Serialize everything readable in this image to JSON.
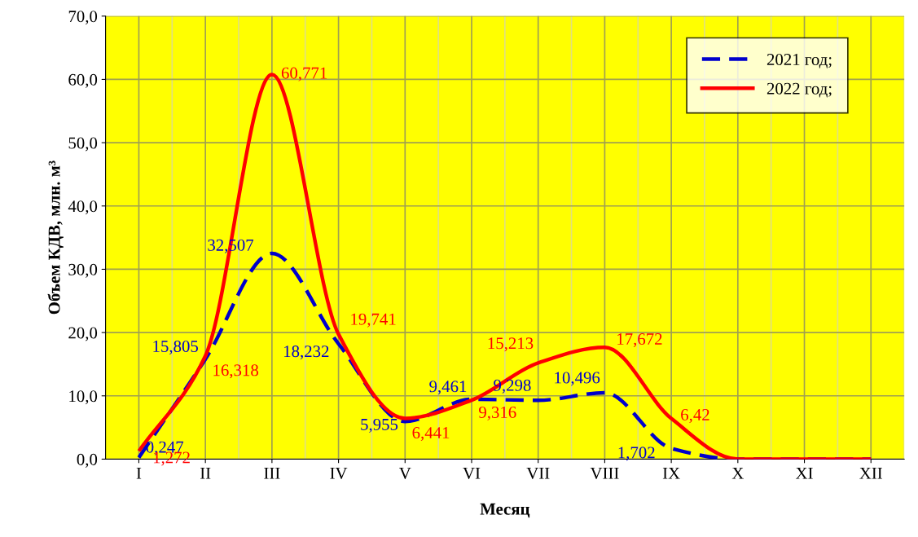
{
  "chart_data": {
    "type": "line",
    "xlabel": "Месяц",
    "ylabel": "Объем КДВ, млн. м³",
    "categories": [
      "I",
      "II",
      "III",
      "IV",
      "V",
      "VI",
      "VII",
      "VIII",
      "IX",
      "X",
      "XI",
      "XII"
    ],
    "series": [
      {
        "name": "2021 год;",
        "color": "#0000cc",
        "line_style": "dashed",
        "values": [
          0.247,
          15.805,
          32.507,
          18.232,
          5.955,
          9.461,
          9.298,
          10.496,
          1.702,
          0,
          0,
          0
        ],
        "value_labels": [
          "0,247",
          "15,805",
          "32,507",
          "18,232",
          "5,955",
          "9,461",
          "9,298",
          "10,496",
          "1,702",
          null,
          null,
          null
        ]
      },
      {
        "name": "2022 год;",
        "color": "#ff0000",
        "line_style": "solid",
        "values": [
          1.272,
          16.318,
          60.771,
          19.741,
          6.441,
          9.316,
          15.213,
          17.672,
          6.42,
          0,
          0,
          0
        ],
        "value_labels": [
          "1,272",
          "16,318",
          "60,771",
          "19,741",
          "6,441",
          "9,316",
          "15,213",
          "17,672",
          "6,42",
          null,
          null,
          null
        ]
      }
    ],
    "ylim": [
      0,
      70
    ],
    "yticks": [
      {
        "value": 0,
        "label": "0,0"
      },
      {
        "value": 10,
        "label": "10,0"
      },
      {
        "value": 20,
        "label": "20,0"
      },
      {
        "value": 30,
        "label": "30,0"
      },
      {
        "value": 40,
        "label": "40,0"
      },
      {
        "value": 50,
        "label": "50,0"
      },
      {
        "value": 60,
        "label": "60,0"
      },
      {
        "value": 70,
        "label": "70,0"
      }
    ],
    "grid": true,
    "legend": "top right",
    "marker": "none"
  }
}
